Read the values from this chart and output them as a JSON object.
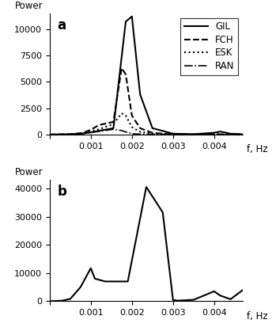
{
  "panel_a": {
    "label": "a",
    "ylabel": "Power",
    "xlabel": "f, Hz",
    "xlim": [
      0,
      0.0047
    ],
    "ylim": [
      0,
      11500
    ],
    "yticks": [
      0,
      2500,
      5000,
      7500,
      10000
    ],
    "xticks": [
      0,
      0.001,
      0.002,
      0.003,
      0.004
    ],
    "series": {
      "GIL": {
        "x": [
          0,
          0.0002,
          0.0005,
          0.0008,
          0.001,
          0.0012,
          0.00155,
          0.00185,
          0.002,
          0.0022,
          0.0025,
          0.003,
          0.0035,
          0.004,
          0.00415,
          0.0044,
          0.0047
        ],
        "y": [
          0,
          10,
          30,
          100,
          200,
          350,
          600,
          10700,
          11200,
          3800,
          600,
          80,
          30,
          170,
          280,
          80,
          30
        ],
        "linestyle": "solid",
        "color": "#000000",
        "linewidth": 1.5
      },
      "FCH": {
        "x": [
          0,
          0.0002,
          0.0005,
          0.0008,
          0.001,
          0.0012,
          0.00155,
          0.00175,
          0.00185,
          0.002,
          0.0022,
          0.0025,
          0.003,
          0.0035,
          0.004,
          0.00415,
          0.0044,
          0.0047
        ],
        "y": [
          0,
          10,
          30,
          150,
          450,
          900,
          1200,
          6300,
          5700,
          1800,
          600,
          150,
          30,
          20,
          30,
          20,
          15,
          10
        ],
        "linestyle": "dashed",
        "color": "#000000",
        "linewidth": 1.5
      },
      "ESK": {
        "x": [
          0,
          0.0002,
          0.0005,
          0.0008,
          0.001,
          0.0012,
          0.00155,
          0.00175,
          0.00185,
          0.002,
          0.0022,
          0.0025,
          0.003,
          0.0035,
          0.004,
          0.0044,
          0.0047
        ],
        "y": [
          0,
          5,
          20,
          100,
          300,
          500,
          1000,
          2000,
          1800,
          700,
          250,
          80,
          20,
          10,
          20,
          10,
          5
        ],
        "linestyle": "dotted",
        "color": "#000000",
        "linewidth": 1.5
      },
      "RAN": {
        "x": [
          0,
          0.0002,
          0.0005,
          0.0008,
          0.001,
          0.0012,
          0.00155,
          0.00175,
          0.00185,
          0.002,
          0.0022,
          0.0025,
          0.003,
          0.0035,
          0.004,
          0.0044,
          0.0047
        ],
        "y": [
          0,
          5,
          15,
          80,
          200,
          300,
          500,
          380,
          250,
          80,
          30,
          10,
          5,
          3,
          3,
          2,
          2
        ],
        "linestyle": "dashdot",
        "color": "#000000",
        "linewidth": 1.2
      }
    },
    "legend_loc": "upper right"
  },
  "panel_b": {
    "label": "b",
    "ylabel": "Power",
    "xlabel": "f, Hz",
    "xlim": [
      0,
      0.0047
    ],
    "ylim": [
      0,
      43000
    ],
    "yticks": [
      0,
      10000,
      20000,
      30000,
      40000
    ],
    "xticks": [
      0,
      0.001,
      0.002,
      0.003,
      0.004
    ],
    "series": {
      "x": [
        0,
        0.0003,
        0.0005,
        0.00075,
        0.001,
        0.0011,
        0.00135,
        0.0016,
        0.0019,
        0.00235,
        0.00275,
        0.003,
        0.0031,
        0.0035,
        0.004,
        0.00415,
        0.0044,
        0.0047
      ],
      "y": [
        0,
        200,
        800,
        5000,
        11700,
        8000,
        7000,
        7000,
        7000,
        40500,
        31500,
        500,
        200,
        500,
        3500,
        2000,
        700,
        4000
      ],
      "linestyle": "solid",
      "color": "#000000",
      "linewidth": 1.5
    }
  },
  "background_color": "#ffffff",
  "legend_fontsize": 8.5,
  "label_fontsize": 8.5,
  "tick_fontsize": 8,
  "bold_label_fontsize": 12
}
